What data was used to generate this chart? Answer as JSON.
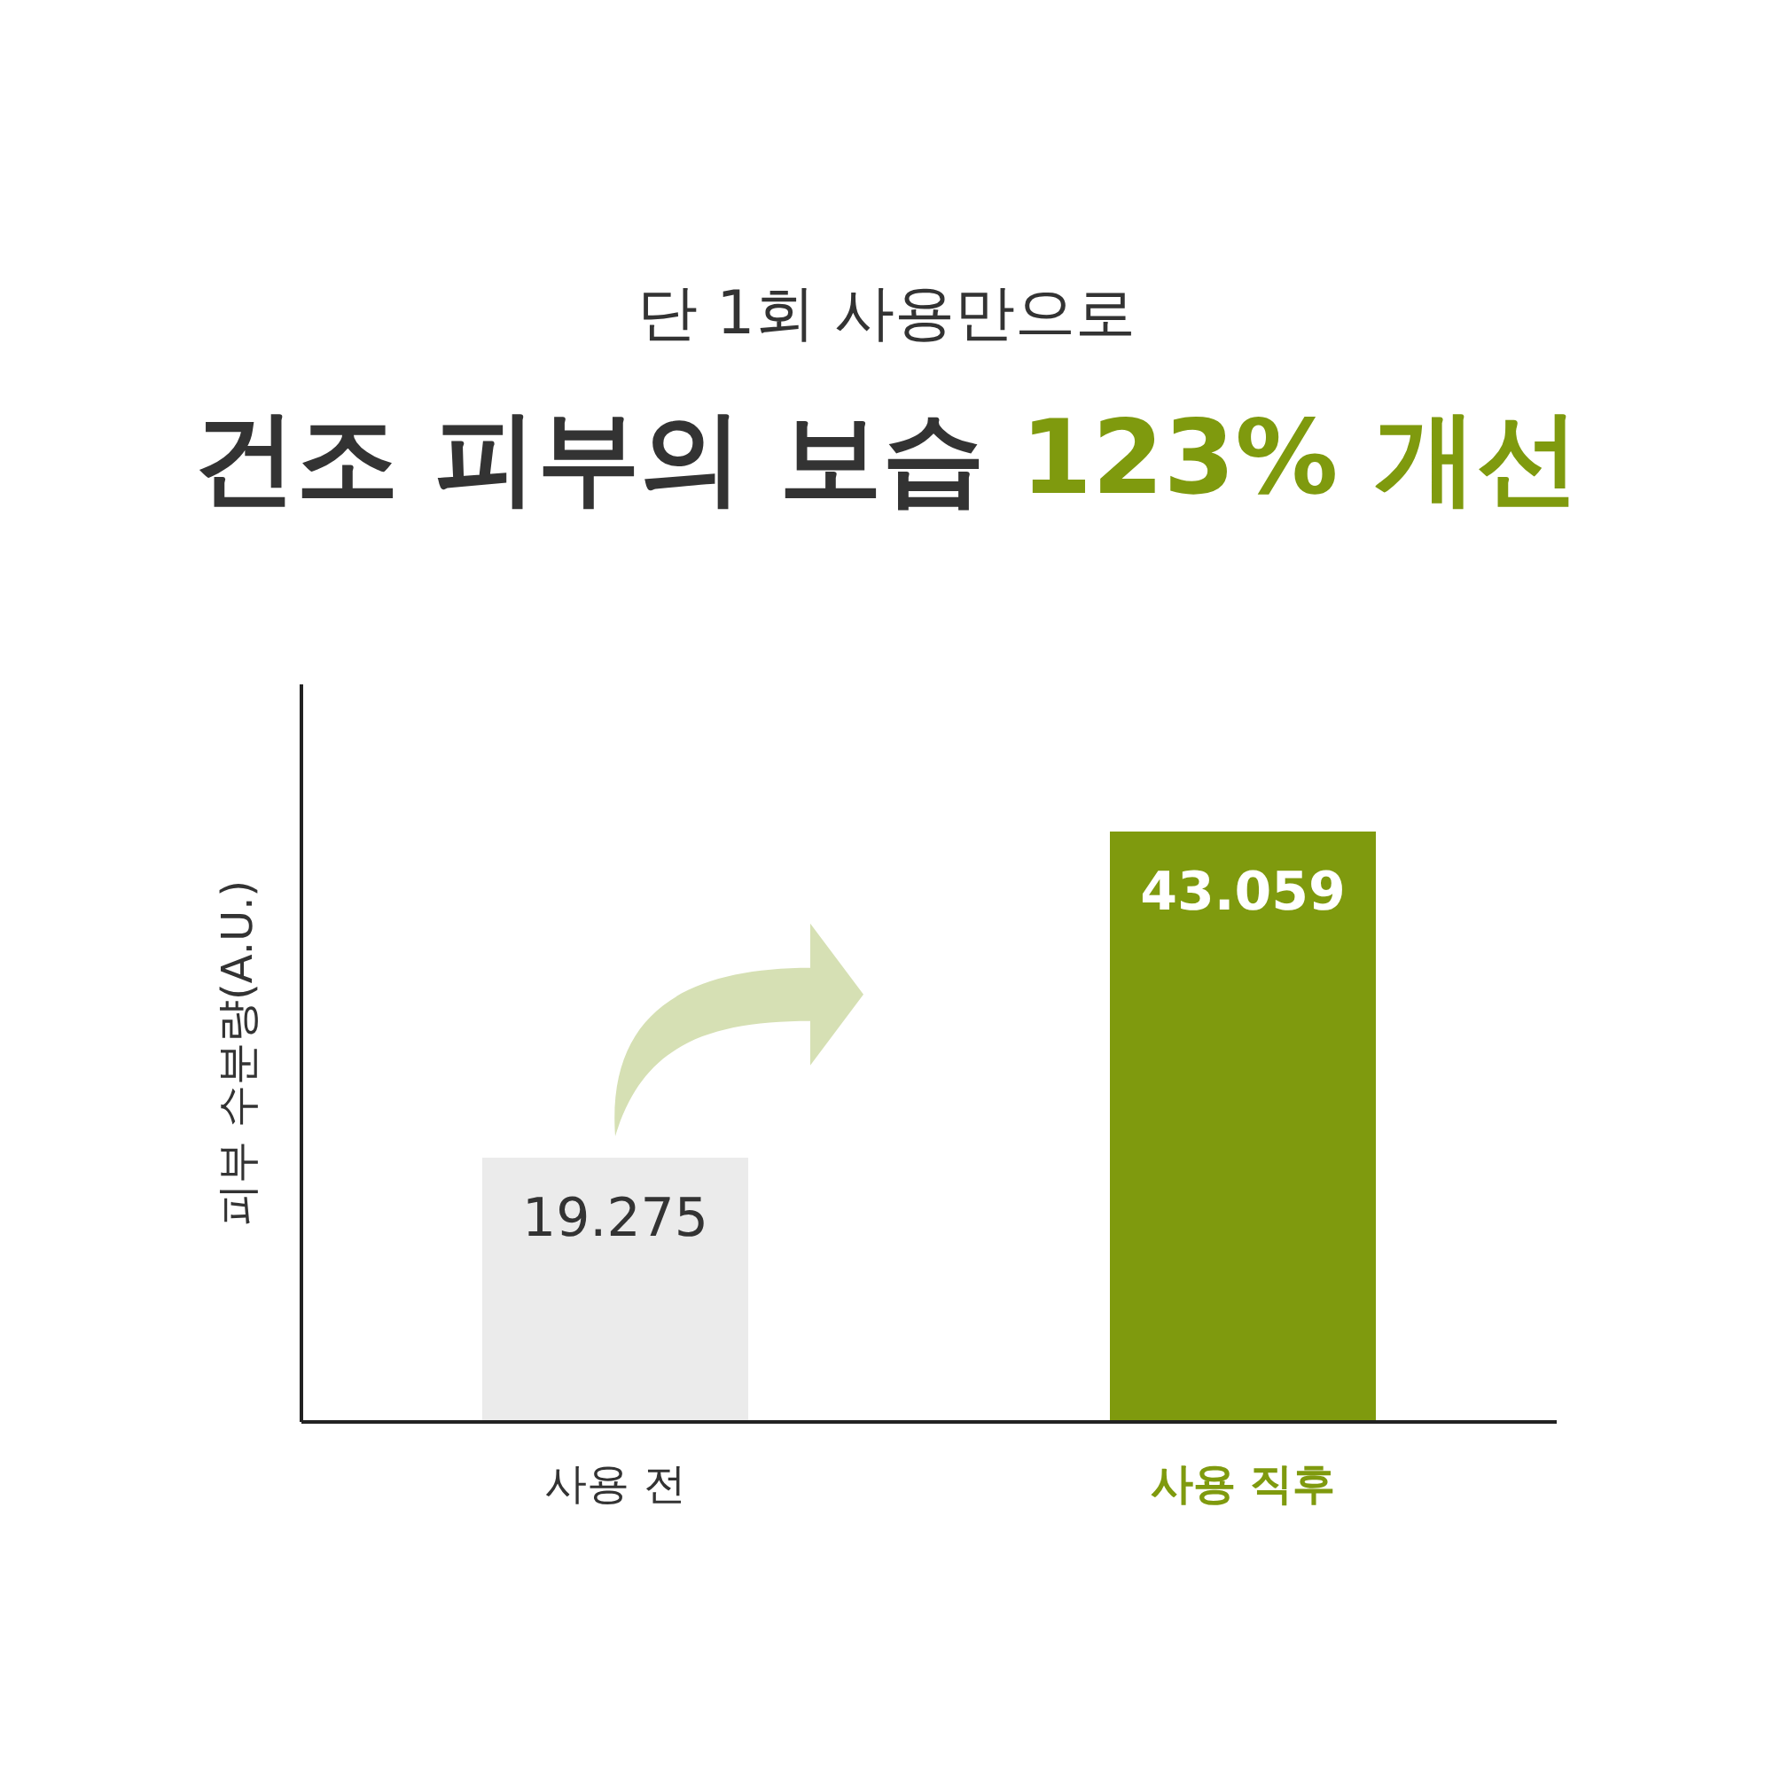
{
  "chart_data": {
    "type": "bar",
    "subtitle": "단 1회 사용만으로",
    "title": "건조 피부의 보습 123% 개선",
    "ylabel": "피부 수분량(A.U.)",
    "categories": [
      "사용 전",
      "사용 직후"
    ],
    "values": [
      19.275,
      43.059
    ],
    "colors": [
      "#ebebeb",
      "#7f9a0e"
    ],
    "data_labels": true
  }
}
